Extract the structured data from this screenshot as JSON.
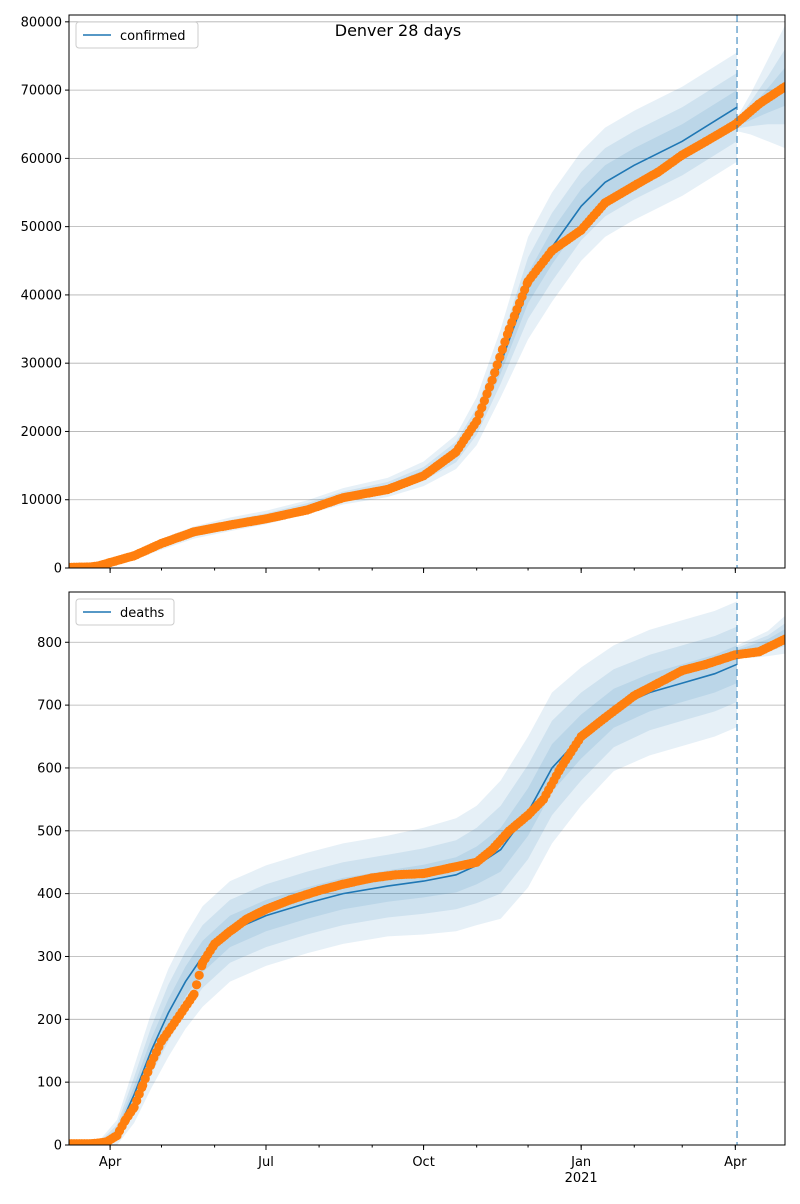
{
  "figure": {
    "title": "Denver 28 days"
  },
  "chart_data": [
    {
      "type": "line",
      "title": "",
      "ylim": [
        0,
        81000
      ],
      "xlim": [
        "2020-03-08",
        "2021-04-30"
      ],
      "forecast_start": "2021-04-02",
      "grid": "horizontal",
      "legend_position": "top-left",
      "yticks": [
        0,
        10000,
        20000,
        30000,
        40000,
        50000,
        60000,
        70000,
        80000
      ],
      "ytick_labels": [
        "0",
        "10000",
        "20000",
        "30000",
        "40000",
        "50000",
        "60000",
        "70000",
        "80000"
      ],
      "xtick_dates": [
        "2020-04-01",
        "2020-07-01",
        "2020-10-01",
        "2021-01-01",
        "2021-04-01"
      ],
      "xtick_labels": [
        "",
        "",
        "",
        "",
        ""
      ],
      "series": [
        {
          "name": "confirmed",
          "kind": "model",
          "color": "#1f77b4",
          "x": [
            "2020-03-08",
            "2020-03-25",
            "2020-04-15",
            "2020-05-01",
            "2020-05-20",
            "2020-06-10",
            "2020-07-01",
            "2020-07-25",
            "2020-08-15",
            "2020-09-10",
            "2020-10-01",
            "2020-10-20",
            "2020-11-01",
            "2020-11-15",
            "2020-12-01",
            "2020-12-15",
            "2021-01-01",
            "2021-01-15",
            "2021-02-01",
            "2021-03-01",
            "2021-04-02"
          ],
          "values": [
            0,
            200,
            1700,
            3500,
            5200,
            6400,
            7400,
            8900,
            10500,
            11800,
            13800,
            17000,
            21500,
            30000,
            41000,
            47000,
            53000,
            56500,
            59000,
            62500,
            67500
          ],
          "band_outer": [
            0,
            100,
            500,
            800,
            900,
            1000,
            1000,
            1000,
            1200,
            1400,
            1800,
            2500,
            3500,
            5000,
            7500,
            8000,
            8000,
            8000,
            8000,
            8000,
            8000
          ],
          "band_mid": [
            0,
            60,
            300,
            500,
            600,
            600,
            600,
            600,
            700,
            800,
            1000,
            1500,
            2000,
            3000,
            4500,
            5000,
            5000,
            5000,
            5000,
            5000,
            5000
          ],
          "band_inner": [
            0,
            30,
            150,
            250,
            300,
            300,
            300,
            300,
            350,
            400,
            500,
            700,
            1000,
            1500,
            2200,
            2500,
            2500,
            2500,
            2500,
            2500,
            2500
          ]
        },
        {
          "name": "",
          "kind": "observed",
          "color": "#ff7f0e",
          "x": [
            "2020-03-08",
            "2020-03-20",
            "2020-03-25",
            "2020-04-01",
            "2020-04-15",
            "2020-05-01",
            "2020-05-20",
            "2020-06-10",
            "2020-07-01",
            "2020-07-25",
            "2020-08-15",
            "2020-09-10",
            "2020-10-01",
            "2020-10-20",
            "2020-11-01",
            "2020-11-10",
            "2020-11-20",
            "2020-12-01",
            "2020-12-15",
            "2021-01-01",
            "2021-01-15",
            "2021-02-01",
            "2021-02-15",
            "2021-03-01",
            "2021-03-15",
            "2021-04-01",
            "2021-04-15",
            "2021-04-30"
          ],
          "values": [
            100,
            150,
            300,
            800,
            1800,
            3600,
            5300,
            6300,
            7200,
            8500,
            10300,
            11500,
            13500,
            17000,
            21500,
            27500,
            35000,
            42000,
            46500,
            49500,
            53500,
            56000,
            58000,
            60500,
            62500,
            65000,
            68000,
            70500
          ]
        },
        {
          "name": "",
          "kind": "forecast",
          "color": "#1f77b4",
          "x": [
            "2021-04-02",
            "2021-04-10",
            "2021-04-20",
            "2021-04-30"
          ],
          "values": [
            65000,
            66500,
            68500,
            70500
          ],
          "band_outer": [
            1000,
            3000,
            6000,
            9000
          ],
          "band_mid": [
            600,
            1800,
            3500,
            5500
          ],
          "band_inner": [
            300,
            900,
            1800,
            2800
          ]
        }
      ]
    },
    {
      "type": "line",
      "title": "",
      "ylim": [
        0,
        880
      ],
      "xlim": [
        "2020-03-08",
        "2021-04-30"
      ],
      "forecast_start": "2021-04-02",
      "grid": "horizontal",
      "legend_position": "top-left",
      "yticks": [
        0,
        100,
        200,
        300,
        400,
        500,
        600,
        700,
        800
      ],
      "ytick_labels": [
        "0",
        "100",
        "200",
        "300",
        "400",
        "500",
        "600",
        "700",
        "800"
      ],
      "xtick_dates": [
        "2020-04-01",
        "2020-07-01",
        "2020-10-01",
        "2021-01-01",
        "2021-04-01"
      ],
      "xtick_labels": [
        "Apr",
        "Jul",
        "Oct",
        "Jan\n2021",
        "Apr"
      ],
      "series": [
        {
          "name": "deaths",
          "kind": "model",
          "color": "#1f77b4",
          "x": [
            "2020-03-08",
            "2020-03-25",
            "2020-04-05",
            "2020-04-15",
            "2020-04-25",
            "2020-05-05",
            "2020-05-15",
            "2020-05-25",
            "2020-06-10",
            "2020-07-01",
            "2020-07-25",
            "2020-08-15",
            "2020-09-10",
            "2020-10-01",
            "2020-10-20",
            "2020-11-01",
            "2020-11-15",
            "2020-12-01",
            "2020-12-15",
            "2021-01-01",
            "2021-01-20",
            "2021-02-10",
            "2021-03-01",
            "2021-03-20",
            "2021-04-02"
          ],
          "values": [
            0,
            0,
            20,
            80,
            150,
            210,
            260,
            300,
            340,
            365,
            385,
            400,
            412,
            420,
            430,
            445,
            470,
            530,
            600,
            650,
            695,
            720,
            735,
            750,
            765
          ],
          "band_outer": [
            0,
            5,
            20,
            45,
            60,
            70,
            75,
            80,
            80,
            80,
            80,
            80,
            80,
            85,
            90,
            95,
            110,
            120,
            120,
            110,
            100,
            100,
            100,
            100,
            100
          ],
          "band_mid": [
            0,
            3,
            12,
            28,
            38,
            45,
            48,
            50,
            50,
            50,
            50,
            50,
            50,
            52,
            55,
            60,
            70,
            75,
            75,
            70,
            62,
            60,
            60,
            60,
            60
          ],
          "band_inner": [
            0,
            2,
            6,
            14,
            19,
            22,
            24,
            25,
            25,
            25,
            25,
            25,
            25,
            26,
            28,
            30,
            35,
            38,
            38,
            35,
            31,
            30,
            30,
            30,
            30
          ]
        },
        {
          "name": "",
          "kind": "observed",
          "color": "#ff7f0e",
          "x": [
            "2020-03-08",
            "2020-03-20",
            "2020-03-25",
            "2020-03-30",
            "2020-04-05",
            "2020-04-10",
            "2020-04-15",
            "2020-04-20",
            "2020-04-25",
            "2020-05-01",
            "2020-05-10",
            "2020-05-20",
            "2020-05-25",
            "2020-06-01",
            "2020-06-10",
            "2020-06-20",
            "2020-07-01",
            "2020-07-15",
            "2020-08-01",
            "2020-08-15",
            "2020-09-01",
            "2020-09-15",
            "2020-10-01",
            "2020-10-15",
            "2020-11-01",
            "2020-11-10",
            "2020-11-20",
            "2020-12-01",
            "2020-12-10",
            "2020-12-20",
            "2021-01-01",
            "2021-01-15",
            "2021-02-01",
            "2021-02-15",
            "2021-03-01",
            "2021-03-15",
            "2021-04-01",
            "2021-04-15",
            "2021-04-30"
          ],
          "values": [
            2,
            2,
            3,
            5,
            15,
            40,
            60,
            95,
            130,
            165,
            200,
            240,
            290,
            320,
            340,
            360,
            375,
            390,
            405,
            415,
            425,
            430,
            432,
            440,
            450,
            470,
            500,
            525,
            550,
            600,
            650,
            680,
            715,
            735,
            755,
            765,
            780,
            785,
            805
          ]
        },
        {
          "name": "",
          "kind": "forecast",
          "color": "#1f77b4",
          "x": [
            "2021-04-02",
            "2021-04-10",
            "2021-04-20",
            "2021-04-30"
          ],
          "values": [
            785,
            790,
            798,
            812
          ],
          "band_outer": [
            10,
            15,
            20,
            30
          ],
          "band_mid": [
            6,
            10,
            13,
            18
          ],
          "band_inner": [
            3,
            5,
            7,
            9
          ]
        }
      ]
    }
  ]
}
